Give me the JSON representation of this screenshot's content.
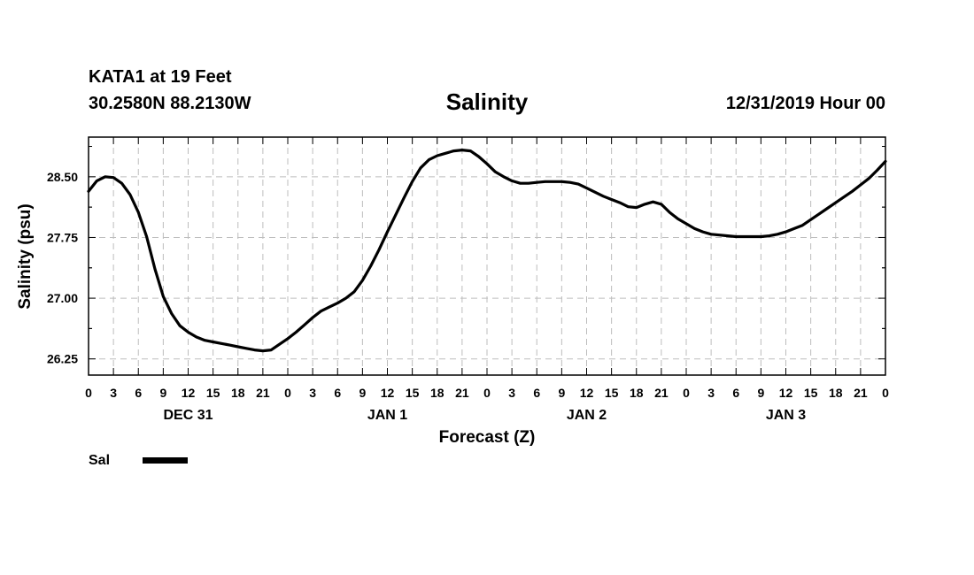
{
  "header": {
    "station": "KATA1 at 19 Feet",
    "coords": "30.2580N 88.2130W",
    "date": "12/31/2019 Hour 00"
  },
  "chart_data": {
    "type": "line",
    "title": "Salinity",
    "xlabel": "Forecast (Z)",
    "ylabel": "Salinity (psu)",
    "xlim": [
      0,
      96
    ],
    "ylim": [
      26.05,
      28.99
    ],
    "y_ticks": [
      26.25,
      27.0,
      27.75,
      28.5
    ],
    "y_tick_labels": [
      "26.25",
      "27.00",
      "27.75",
      "28.50"
    ],
    "x_tick_labels": [
      "0",
      "3",
      "6",
      "9",
      "12",
      "15",
      "18",
      "21",
      "0",
      "3",
      "6",
      "9",
      "12",
      "15",
      "18",
      "21",
      "0",
      "3",
      "6",
      "9",
      "12",
      "15",
      "18",
      "21",
      "0",
      "3",
      "6",
      "9",
      "12",
      "15",
      "18",
      "21",
      "0"
    ],
    "day_labels": [
      {
        "label": "DEC 31",
        "x": 12
      },
      {
        "label": "JAN 1",
        "x": 36
      },
      {
        "label": "JAN 2",
        "x": 60
      },
      {
        "label": "JAN 3",
        "x": 84
      }
    ],
    "grid": true,
    "legend": [
      {
        "name": "Sal",
        "color": "#000000"
      }
    ],
    "legend_position": "bottom-left",
    "series": [
      {
        "name": "Sal",
        "color": "#000000",
        "x": [
          0,
          1,
          2,
          3,
          4,
          5,
          6,
          7,
          8,
          9,
          10,
          11,
          12,
          13,
          14,
          15,
          16,
          17,
          18,
          19,
          20,
          21,
          22,
          23,
          24,
          25,
          26,
          27,
          28,
          29,
          30,
          31,
          32,
          33,
          34,
          35,
          36,
          37,
          38,
          39,
          40,
          41,
          42,
          43,
          44,
          45,
          46,
          47,
          48,
          49,
          50,
          51,
          52,
          53,
          54,
          55,
          56,
          57,
          58,
          59,
          60,
          61,
          62,
          63,
          64,
          65,
          66,
          67,
          68,
          69,
          70,
          71,
          72,
          73,
          74,
          75,
          76,
          77,
          78,
          79,
          80,
          81,
          82,
          83,
          84,
          85,
          86,
          87,
          88,
          89,
          90,
          91,
          92,
          93,
          94,
          95,
          96
        ],
        "values": [
          28.32,
          28.45,
          28.5,
          28.49,
          28.42,
          28.28,
          28.06,
          27.76,
          27.36,
          27.02,
          26.81,
          26.66,
          26.58,
          26.52,
          26.48,
          26.46,
          26.44,
          26.42,
          26.4,
          26.38,
          26.36,
          26.35,
          26.36,
          26.43,
          26.5,
          26.58,
          26.67,
          26.76,
          26.84,
          26.89,
          26.94,
          27.0,
          27.08,
          27.22,
          27.4,
          27.6,
          27.82,
          28.03,
          28.24,
          28.44,
          28.61,
          28.71,
          28.76,
          28.79,
          28.82,
          28.83,
          28.82,
          28.75,
          28.66,
          28.56,
          28.5,
          28.45,
          28.42,
          28.42,
          28.43,
          28.44,
          28.44,
          28.44,
          28.43,
          28.41,
          28.36,
          28.31,
          28.26,
          28.22,
          28.18,
          28.13,
          28.12,
          28.16,
          28.19,
          28.16,
          28.06,
          27.98,
          27.92,
          27.86,
          27.82,
          27.79,
          27.78,
          27.77,
          27.76,
          27.76,
          27.76,
          27.76,
          27.77,
          27.79,
          27.82,
          27.86,
          27.9,
          27.97,
          28.04,
          28.11,
          28.18,
          28.25,
          28.32,
          28.4,
          28.48,
          28.58,
          28.69
        ]
      }
    ]
  }
}
